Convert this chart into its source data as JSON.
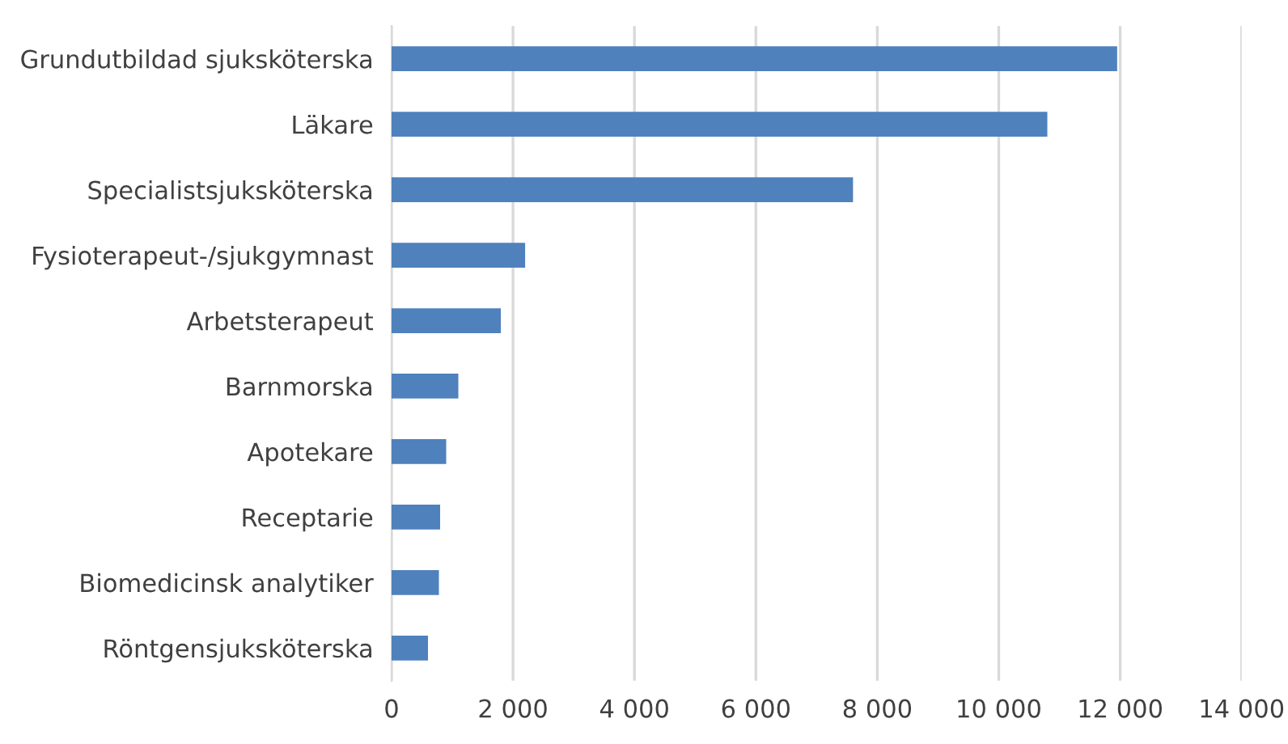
{
  "chart_data": {
    "type": "bar",
    "orientation": "horizontal",
    "categories": [
      "Grundutbildad sjuksköterska",
      "Läkare",
      "Specialistsjuksköterska",
      "Fysioterapeut-/sjukgymnast",
      "Arbetsterapeut",
      "Barnmorska",
      "Apotekare",
      "Receptarie",
      "Biomedicinsk analytiker",
      "Röntgensjuksköterska"
    ],
    "values": [
      11950,
      10800,
      7600,
      2200,
      1800,
      1100,
      900,
      800,
      780,
      600
    ],
    "color": "#4f81bd",
    "xlim": [
      0,
      14000
    ],
    "xticks": [
      0,
      {
        "value": 2000,
        "label": "2 000"
      },
      {
        "value": 4000,
        "label": "4 000"
      },
      {
        "value": 6000,
        "label": "6 000"
      },
      {
        "value": 8000,
        "label": "8 000"
      },
      {
        "value": 10000,
        "label": "10 000"
      },
      {
        "value": 12000,
        "label": "12 000"
      },
      {
        "value": 14000,
        "label": "14 000"
      }
    ],
    "grid": "x"
  }
}
